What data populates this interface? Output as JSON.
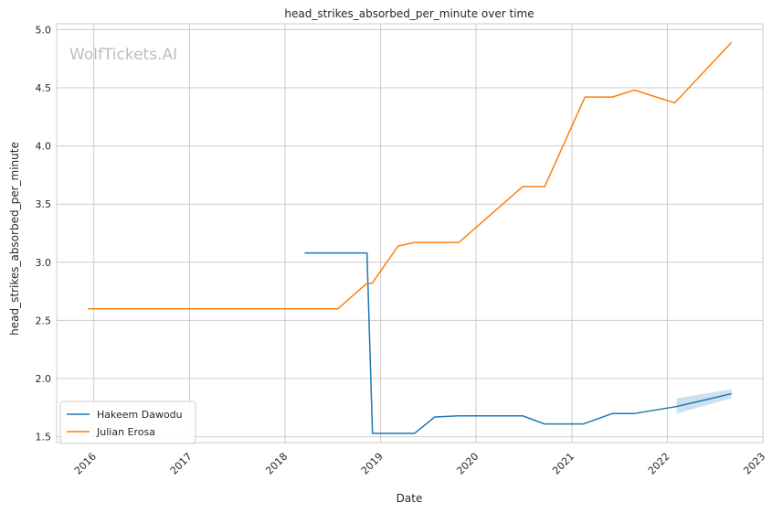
{
  "chart_data": {
    "type": "line",
    "title": "head_strikes_absorbed_per_minute over time",
    "xlabel": "Date",
    "ylabel": "head_strikes_absorbed_per_minute",
    "watermark": "WolfTickets.AI",
    "xlim": [
      "2015-08-12",
      "2023-01-01"
    ],
    "ylim": [
      1.45,
      5.05
    ],
    "x_ticks": [
      "2016",
      "2017",
      "2018",
      "2019",
      "2020",
      "2021",
      "2022",
      "2023"
    ],
    "x_tick_dates": [
      "2016-01-01",
      "2017-01-01",
      "2018-01-01",
      "2019-01-01",
      "2020-01-01",
      "2021-01-01",
      "2022-01-01",
      "2023-01-01"
    ],
    "y_ticks": [
      "1.5",
      "2.0",
      "2.5",
      "3.0",
      "3.5",
      "4.0",
      "4.5",
      "5.0"
    ],
    "grid": true,
    "legend_position": "lower-left",
    "series": [
      {
        "name": "Hakeem Dawodu",
        "color": "#1f77b4",
        "points": [
          {
            "x": "2018-03-17",
            "y": 3.08
          },
          {
            "x": "2018-11-10",
            "y": 3.08
          },
          {
            "x": "2018-12-01",
            "y": 1.53
          },
          {
            "x": "2019-05-11",
            "y": 1.53
          },
          {
            "x": "2019-07-27",
            "y": 1.67
          },
          {
            "x": "2019-10-27",
            "y": 1.68
          },
          {
            "x": "2020-06-27",
            "y": 1.68
          },
          {
            "x": "2020-09-19",
            "y": 1.61
          },
          {
            "x": "2021-02-13",
            "y": 1.61
          },
          {
            "x": "2021-06-05",
            "y": 1.7
          },
          {
            "x": "2021-08-28",
            "y": 1.7
          },
          {
            "x": "2022-02-05",
            "y": 1.76
          },
          {
            "x": "2022-09-03",
            "y": 1.87
          }
        ],
        "band": [
          {
            "x": "2022-02-05",
            "low": 1.7,
            "high": 1.83
          },
          {
            "x": "2022-09-03",
            "low": 1.83,
            "high": 1.91
          }
        ]
      },
      {
        "name": "Julian Erosa",
        "color": "#ff7f0e",
        "points": [
          {
            "x": "2015-12-10",
            "y": 2.6
          },
          {
            "x": "2018-07-22",
            "y": 2.6
          },
          {
            "x": "2018-11-10",
            "y": 2.82
          },
          {
            "x": "2018-11-30",
            "y": 2.82
          },
          {
            "x": "2019-03-09",
            "y": 3.14
          },
          {
            "x": "2019-05-11",
            "y": 3.17
          },
          {
            "x": "2019-10-27",
            "y": 3.17
          },
          {
            "x": "2020-06-27",
            "y": 3.65
          },
          {
            "x": "2020-09-19",
            "y": 3.65
          },
          {
            "x": "2021-02-20",
            "y": 4.42
          },
          {
            "x": "2021-06-05",
            "y": 4.42
          },
          {
            "x": "2021-08-28",
            "y": 4.48
          },
          {
            "x": "2022-01-29",
            "y": 4.37
          },
          {
            "x": "2022-09-03",
            "y": 4.89
          }
        ]
      }
    ]
  }
}
